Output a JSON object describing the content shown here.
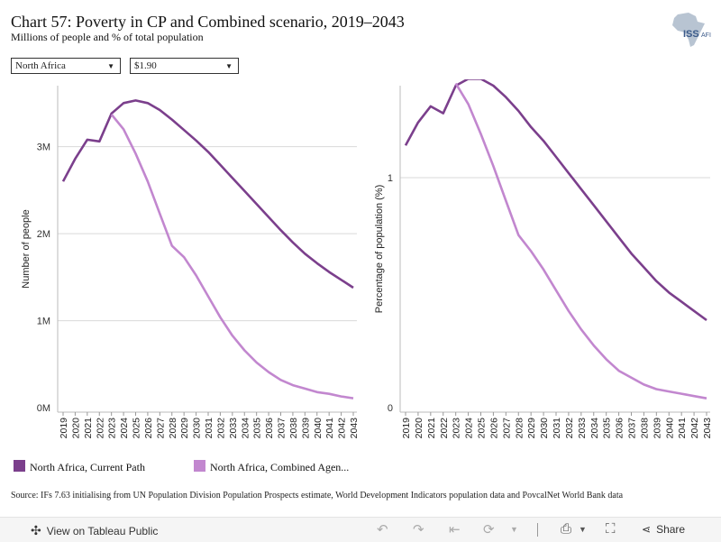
{
  "header": {
    "title": "Chart 57: Poverty in CP and Combined scenario, 2019–2043",
    "subtitle": "Millions of people and % of total population",
    "logo_text": "ISS",
    "logo_suffix": "AFI"
  },
  "filters": {
    "region": "North Africa",
    "poverty_line": "$1.90"
  },
  "legend": [
    {
      "name": "North Africa, Current Path",
      "color": "#7b3f8c"
    },
    {
      "name": "North Africa, Combined Agen...",
      "color": "#c287cf"
    }
  ],
  "source": "Source: IFs 7.63 initialising from UN Population Division Population Prospects estimate, World Development Indicators population data and PovcalNet World Bank data",
  "footer": {
    "view_label": "View on Tableau Public",
    "share_label": "Share"
  },
  "chart_data": [
    {
      "type": "line",
      "ylabel": "Number of people",
      "ylim": [
        -0.05,
        3.7
      ],
      "yticks": [
        0,
        1,
        2,
        3
      ],
      "ytick_labels": [
        "0M",
        "1M",
        "2M",
        "3M"
      ],
      "grid": true,
      "x": [
        "2019",
        "2020",
        "2021",
        "2022",
        "2023",
        "2024",
        "2025",
        "2026",
        "2027",
        "2028",
        "2029",
        "2030",
        "2031",
        "2032",
        "2033",
        "2034",
        "2035",
        "2036",
        "2037",
        "2038",
        "2039",
        "2040",
        "2041",
        "2042",
        "2043"
      ],
      "series": [
        {
          "name": "North Africa, Current Path",
          "color": "#7b3f8c",
          "values": [
            2.6,
            2.86,
            3.08,
            3.06,
            3.38,
            3.5,
            3.53,
            3.5,
            3.42,
            3.31,
            3.19,
            3.07,
            2.94,
            2.79,
            2.64,
            2.49,
            2.34,
            2.19,
            2.04,
            1.9,
            1.77,
            1.66,
            1.56,
            1.47,
            1.38
          ]
        },
        {
          "name": "North Africa, Combined Agen...",
          "color": "#c287cf",
          "values": [
            null,
            null,
            null,
            null,
            3.37,
            3.2,
            2.92,
            2.6,
            2.23,
            1.86,
            1.73,
            1.52,
            1.28,
            1.04,
            0.83,
            0.66,
            0.52,
            0.41,
            0.32,
            0.26,
            0.22,
            0.18,
            0.16,
            0.13,
            0.11
          ]
        }
      ]
    },
    {
      "type": "line",
      "ylabel": "Percentage of population (%)",
      "ylim": [
        -0.02,
        1.4
      ],
      "yticks": [
        0,
        1
      ],
      "ytick_labels": [
        "0",
        "1"
      ],
      "grid": true,
      "x": [
        "2019",
        "2020",
        "2021",
        "2022",
        "2023",
        "2024",
        "2025",
        "2026",
        "2027",
        "2028",
        "2029",
        "2030",
        "2031",
        "2032",
        "2033",
        "2034",
        "2035",
        "2036",
        "2037",
        "2038",
        "2039",
        "2040",
        "2041",
        "2042",
        "2043"
      ],
      "series": [
        {
          "name": "North Africa, Current Path",
          "color": "#7b3f8c",
          "values": [
            1.14,
            1.24,
            1.31,
            1.28,
            1.4,
            1.43,
            1.43,
            1.4,
            1.35,
            1.29,
            1.22,
            1.16,
            1.09,
            1.02,
            0.95,
            0.88,
            0.81,
            0.74,
            0.67,
            0.61,
            0.55,
            0.5,
            0.46,
            0.42,
            0.38
          ]
        },
        {
          "name": "North Africa, Combined Agen...",
          "color": "#c287cf",
          "values": [
            null,
            null,
            null,
            null,
            1.41,
            1.32,
            1.19,
            1.05,
            0.9,
            0.75,
            0.68,
            0.6,
            0.51,
            0.42,
            0.34,
            0.27,
            0.21,
            0.16,
            0.13,
            0.1,
            0.08,
            0.07,
            0.06,
            0.05,
            0.04
          ]
        }
      ]
    }
  ]
}
